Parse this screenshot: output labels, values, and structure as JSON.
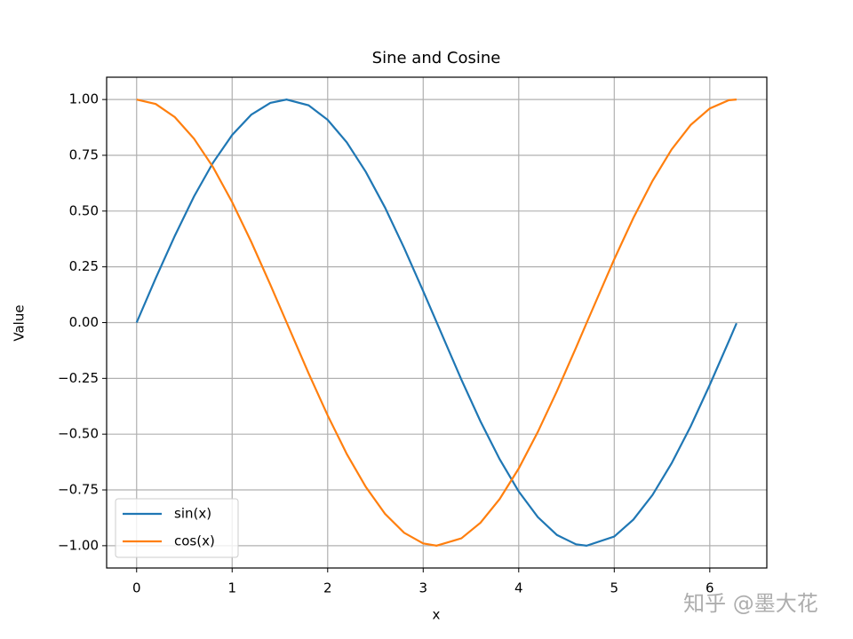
{
  "chart_data": {
    "type": "line",
    "title": "Sine and Cosine",
    "xlabel": "x",
    "ylabel": "Value",
    "x": [
      0,
      0.2,
      0.4,
      0.6,
      0.8,
      1.0,
      1.2,
      1.4,
      1.57,
      1.8,
      2.0,
      2.2,
      2.4,
      2.6,
      2.8,
      3.0,
      3.14,
      3.4,
      3.6,
      3.8,
      4.0,
      4.2,
      4.4,
      4.6,
      4.71,
      5.0,
      5.2,
      5.4,
      5.6,
      5.8,
      6.0,
      6.2,
      6.28
    ],
    "series": [
      {
        "name": "sin(x)",
        "color": "#1f77b4",
        "values": [
          0,
          0.199,
          0.389,
          0.565,
          0.717,
          0.841,
          0.932,
          0.985,
          1.0,
          0.974,
          0.909,
          0.808,
          0.675,
          0.516,
          0.335,
          0.141,
          0.002,
          -0.256,
          -0.443,
          -0.612,
          -0.757,
          -0.872,
          -0.952,
          -0.994,
          -1.0,
          -0.959,
          -0.883,
          -0.773,
          -0.631,
          -0.465,
          -0.279,
          -0.083,
          -0.003
        ]
      },
      {
        "name": "cos(x)",
        "color": "#ff7f0e",
        "values": [
          1.0,
          0.98,
          0.921,
          0.825,
          0.697,
          0.54,
          0.362,
          0.17,
          0.001,
          -0.227,
          -0.416,
          -0.589,
          -0.737,
          -0.857,
          -0.942,
          -0.99,
          -1.0,
          -0.967,
          -0.897,
          -0.791,
          -0.654,
          -0.49,
          -0.307,
          -0.112,
          -0.002,
          0.284,
          0.469,
          0.635,
          0.776,
          0.886,
          0.96,
          0.997,
          1.0
        ]
      }
    ],
    "xlim": [
      -0.314,
      6.597
    ],
    "ylim": [
      -1.1,
      1.1
    ],
    "xticks": [
      0,
      1,
      2,
      3,
      4,
      5,
      6
    ],
    "yticks": [
      {
        "value": -1,
        "label": "−1.00"
      },
      {
        "value": -0.75,
        "label": "−0.75"
      },
      {
        "value": -0.5,
        "label": "−0.50"
      },
      {
        "value": -0.25,
        "label": "−0.25"
      },
      {
        "value": 0,
        "label": "0.00"
      },
      {
        "value": 0.25,
        "label": "0.25"
      },
      {
        "value": 0.5,
        "label": "0.50"
      },
      {
        "value": 0.75,
        "label": "0.75"
      },
      {
        "value": 1,
        "label": "1.00"
      }
    ],
    "grid": true,
    "legend": "lower left",
    "watermark": "知乎 @墨大花"
  }
}
